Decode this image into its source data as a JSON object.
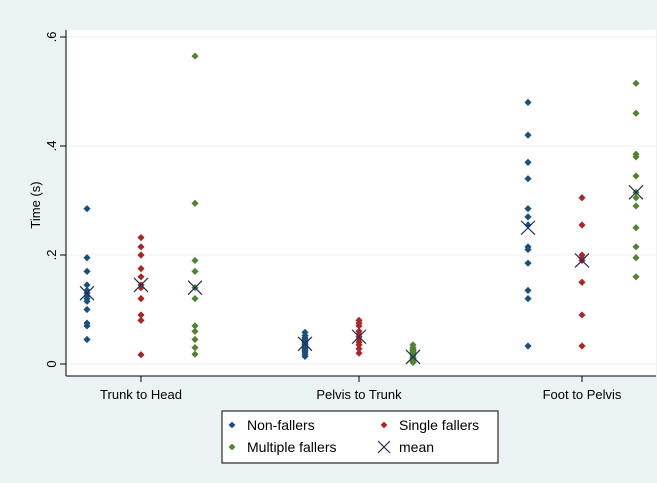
{
  "chart_data": {
    "type": "scatter",
    "title": "",
    "xlabel": "",
    "ylabel": "Time (s)",
    "ylim": [
      -0.02,
      0.62
    ],
    "y_ticks": [
      {
        "value": 0,
        "label": "0"
      },
      {
        "value": 0.2,
        "label": ".2"
      },
      {
        "value": 0.4,
        "label": ".4"
      },
      {
        "value": 0.6,
        "label": ".6"
      }
    ],
    "grid": true,
    "legend_position": "bottom",
    "categories": [
      "Trunk to Head",
      "Pelvis to Trunk",
      "Foot to Pelvis"
    ],
    "series": [
      {
        "name": "Non-fallers",
        "marker": "diamond",
        "color": "#1f4e79",
        "group_index": 0,
        "values": [
          [
            0.285,
            0.195,
            0.17,
            0.145,
            0.135,
            0.13,
            0.125,
            0.12,
            0.115,
            0.1,
            0.075,
            0.07,
            0.045
          ],
          [
            0.058,
            0.052,
            0.048,
            0.045,
            0.042,
            0.04,
            0.037,
            0.035,
            0.032,
            0.03,
            0.028,
            0.025,
            0.022,
            0.018,
            0.014
          ],
          [
            0.48,
            0.42,
            0.37,
            0.34,
            0.285,
            0.27,
            0.255,
            0.215,
            0.21,
            0.185,
            0.135,
            0.12,
            0.033
          ]
        ],
        "means": [
          0.13,
          0.037,
          0.25
        ]
      },
      {
        "name": "Single fallers",
        "marker": "diamond",
        "color": "#a3292b",
        "group_index": 1,
        "values": [
          [
            0.232,
            0.215,
            0.2,
            0.175,
            0.16,
            0.145,
            0.14,
            0.12,
            0.09,
            0.08,
            0.017
          ],
          [
            0.08,
            0.075,
            0.07,
            0.06,
            0.055,
            0.05,
            0.045,
            0.04,
            0.035,
            0.028,
            0.02
          ],
          [
            0.305,
            0.255,
            0.2,
            0.195,
            0.19,
            0.15,
            0.09,
            0.033
          ]
        ],
        "means": [
          0.145,
          0.05,
          0.19
        ]
      },
      {
        "name": "Multiple fallers",
        "marker": "diamond",
        "color": "#548235",
        "group_index": 2,
        "values": [
          [
            0.565,
            0.295,
            0.19,
            0.17,
            0.14,
            0.12,
            0.07,
            0.06,
            0.045,
            0.03,
            0.018
          ],
          [
            0.035,
            0.03,
            0.027,
            0.025,
            0.022,
            0.02,
            0.018,
            0.015,
            0.012,
            0.01,
            0.008,
            0.005,
            0.003
          ],
          [
            0.515,
            0.46,
            0.385,
            0.38,
            0.345,
            0.315,
            0.305,
            0.29,
            0.25,
            0.215,
            0.195,
            0.16
          ]
        ],
        "means": [
          0.14,
          0.013,
          0.315
        ]
      }
    ],
    "mean_series": {
      "name": "mean",
      "marker": "x",
      "color": "#1f2f5a"
    }
  },
  "colors": {
    "outer_background": "#eaf2f3",
    "plot_background": "#ffffff",
    "grid": "#eaf2f3",
    "axis": "#000000"
  }
}
